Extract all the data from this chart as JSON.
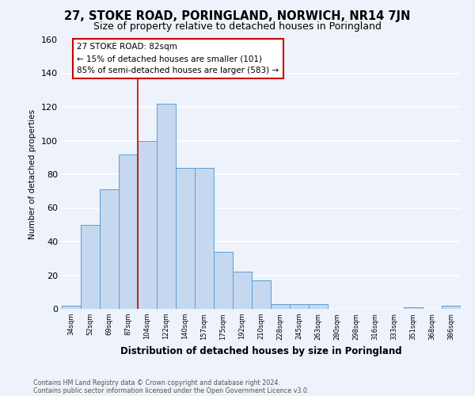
{
  "title": "27, STOKE ROAD, PORINGLAND, NORWICH, NR14 7JN",
  "subtitle": "Size of property relative to detached houses in Poringland",
  "xlabel": "Distribution of detached houses by size in Poringland",
  "ylabel": "Number of detached properties",
  "bar_labels": [
    "34sqm",
    "52sqm",
    "69sqm",
    "87sqm",
    "104sqm",
    "122sqm",
    "140sqm",
    "157sqm",
    "175sqm",
    "192sqm",
    "210sqm",
    "228sqm",
    "245sqm",
    "263sqm",
    "280sqm",
    "298sqm",
    "316sqm",
    "333sqm",
    "351sqm",
    "368sqm",
    "386sqm"
  ],
  "bar_values": [
    2,
    50,
    71,
    92,
    100,
    122,
    84,
    84,
    34,
    22,
    17,
    3,
    3,
    3,
    0,
    0,
    0,
    0,
    1,
    0,
    2
  ],
  "bar_color": "#c5d8f0",
  "bar_edge_color": "#5a9fd4",
  "vline_x": 3.5,
  "vline_color": "#cc0000",
  "annotation_box_text": "27 STOKE ROAD: 82sqm\n← 15% of detached houses are smaller (101)\n85% of semi-detached houses are larger (583) →",
  "ylim": [
    0,
    160
  ],
  "yticks": [
    0,
    20,
    40,
    60,
    80,
    100,
    120,
    140,
    160
  ],
  "footnote1": "Contains HM Land Registry data © Crown copyright and database right 2024.",
  "footnote2": "Contains public sector information licensed under the Open Government Licence v3.0.",
  "bg_color": "#eef2fa",
  "grid_color": "#ffffff",
  "title_fontsize": 10.5,
  "subtitle_fontsize": 9
}
